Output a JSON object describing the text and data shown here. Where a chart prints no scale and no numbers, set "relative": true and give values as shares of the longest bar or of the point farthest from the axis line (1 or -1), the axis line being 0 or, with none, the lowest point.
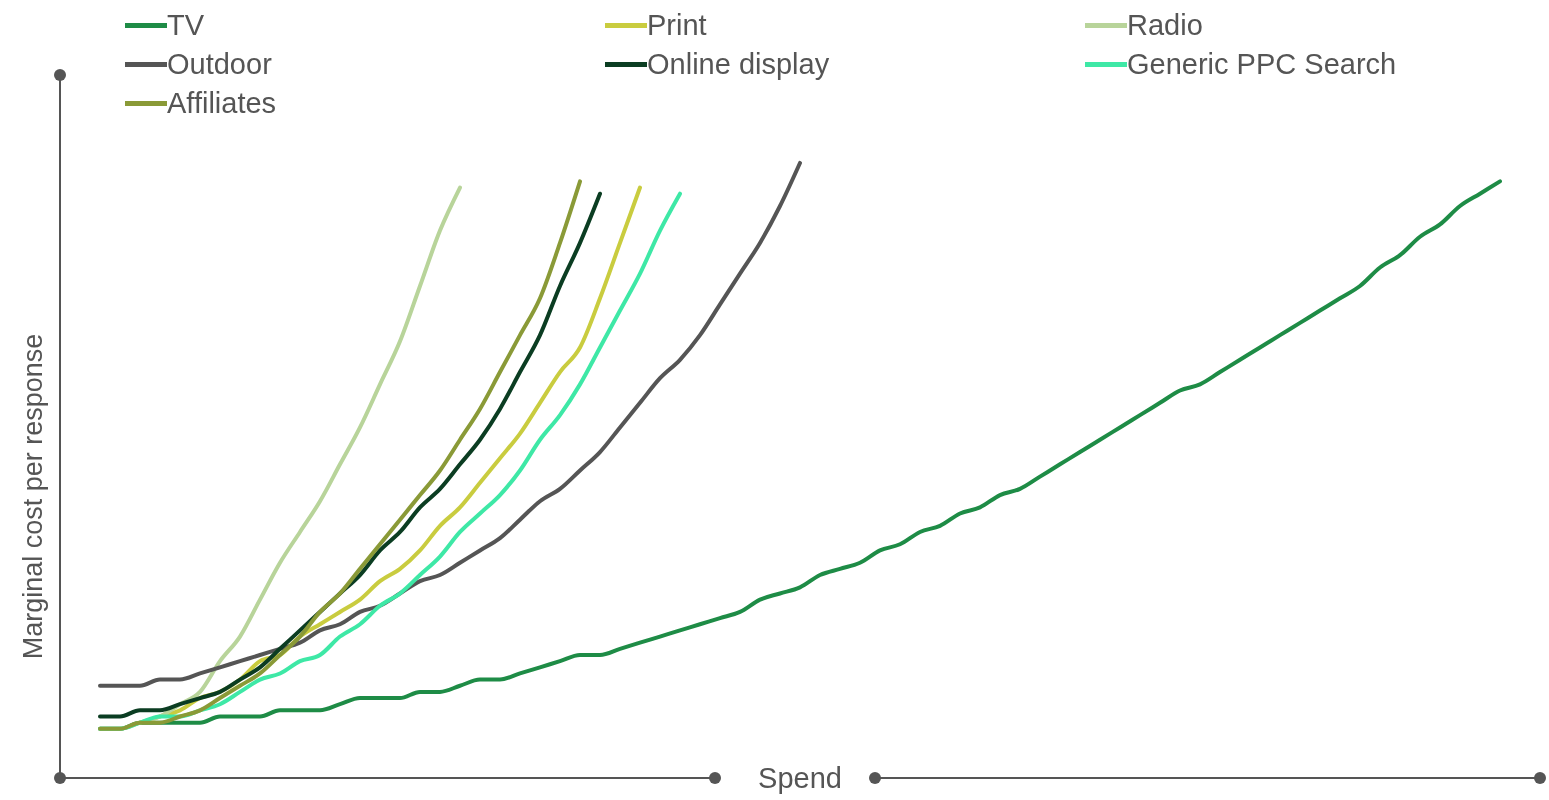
{
  "chart_data": {
    "type": "line",
    "relative": true,
    "xlabel": "Spend",
    "ylabel": "Marginal cost per response",
    "legend": "top",
    "marker": "none",
    "line_style": "solid",
    "categories": [
      null,
      null,
      null,
      null,
      null,
      null,
      null,
      null,
      null,
      null,
      null,
      null,
      null,
      null,
      null,
      null,
      null,
      null,
      null,
      null,
      null,
      null,
      null,
      null,
      null,
      null,
      null,
      null,
      null,
      null,
      null,
      null,
      null,
      null,
      null,
      null,
      null,
      null,
      null,
      null,
      null,
      null,
      null,
      null,
      null,
      null,
      null,
      null,
      null,
      null,
      null,
      null,
      null,
      null,
      null,
      null,
      null,
      null,
      null,
      null,
      null,
      null,
      null,
      null,
      null,
      null,
      null,
      null,
      null,
      null,
      null
    ],
    "series": [
      {
        "name": "TV",
        "color": "#1e8c46",
        "values": [
          0.08,
          0.08,
          0.09,
          0.09,
          0.09,
          0.09,
          0.1,
          0.1,
          0.1,
          0.11,
          0.11,
          0.11,
          0.12,
          0.13,
          0.13,
          0.13,
          0.14,
          0.14,
          0.15,
          0.16,
          0.16,
          0.17,
          0.18,
          0.19,
          0.2,
          0.2,
          0.21,
          0.22,
          0.23,
          0.24,
          0.25,
          0.26,
          0.27,
          0.29,
          0.3,
          0.31,
          0.33,
          0.34,
          0.35,
          0.37,
          0.38,
          0.4,
          0.41,
          0.43,
          0.44,
          0.46,
          0.47,
          0.49,
          0.51,
          0.53,
          0.55,
          0.57,
          0.59,
          0.61,
          0.63,
          0.64,
          0.66,
          0.68,
          0.7,
          0.72,
          0.74,
          0.76,
          0.78,
          0.8,
          0.83,
          0.85,
          0.88,
          0.9,
          0.93,
          0.95,
          0.97
        ]
      },
      {
        "name": "Print",
        "color": "#c9cc3f",
        "values": [
          null,
          null,
          0.09,
          0.1,
          0.11,
          0.13,
          0.14,
          0.16,
          0.19,
          0.2,
          0.23,
          0.25,
          0.27,
          0.29,
          0.32,
          0.34,
          0.37,
          0.41,
          0.44,
          0.48,
          0.52,
          0.56,
          0.61,
          0.66,
          0.7,
          0.78,
          0.87,
          0.96,
          null,
          null,
          null,
          null,
          null,
          null,
          null,
          null,
          null,
          null,
          null,
          null,
          null,
          null,
          null,
          null,
          null,
          null,
          null,
          null,
          null,
          null,
          null,
          null,
          null,
          null,
          null,
          null,
          null,
          null,
          null,
          null,
          null,
          null,
          null,
          null,
          null,
          null,
          null,
          null,
          null,
          null,
          null
        ]
      },
      {
        "name": "Radio",
        "color": "#b8d49a",
        "values": [
          0.08,
          0.08,
          0.09,
          0.1,
          0.12,
          0.14,
          0.19,
          0.23,
          0.29,
          0.35,
          0.4,
          0.45,
          0.51,
          0.57,
          0.64,
          0.71,
          0.8,
          0.89,
          0.96,
          null,
          null,
          null,
          null,
          null,
          null,
          null,
          null,
          null,
          null,
          null,
          null,
          null,
          null,
          null,
          null,
          null,
          null,
          null,
          null,
          null,
          null,
          null,
          null,
          null,
          null,
          null,
          null,
          null,
          null,
          null,
          null,
          null,
          null,
          null,
          null,
          null,
          null,
          null,
          null,
          null,
          null,
          null,
          null,
          null,
          null,
          null,
          null,
          null,
          null,
          null,
          null
        ]
      },
      {
        "name": "Outdoor",
        "color": "#555555",
        "values": [
          0.15,
          0.15,
          0.15,
          0.16,
          0.16,
          0.17,
          0.18,
          0.19,
          0.2,
          0.21,
          0.22,
          0.24,
          0.25,
          0.27,
          0.28,
          0.3,
          0.32,
          0.33,
          0.35,
          0.37,
          0.39,
          0.42,
          0.45,
          0.47,
          0.5,
          0.53,
          0.57,
          0.61,
          0.65,
          0.68,
          0.72,
          0.77,
          0.82,
          0.87,
          0.93,
          1,
          null,
          null,
          null,
          null,
          null,
          null,
          null,
          null,
          null,
          null,
          null,
          null,
          null,
          null,
          null,
          null,
          null,
          null,
          null,
          null,
          null,
          null,
          null,
          null,
          null,
          null,
          null,
          null,
          null,
          null,
          null,
          null,
          null,
          null,
          null
        ]
      },
      {
        "name": "Online display",
        "color": "#0b3d22",
        "values": [
          0.1,
          0.1,
          0.11,
          0.11,
          0.12,
          0.13,
          0.14,
          0.16,
          0.18,
          0.21,
          0.24,
          0.27,
          0.3,
          0.33,
          0.37,
          0.4,
          0.44,
          0.47,
          0.51,
          0.55,
          0.6,
          0.66,
          0.72,
          0.8,
          0.87,
          0.95,
          null,
          null,
          null,
          null,
          null,
          null,
          null,
          null,
          null,
          null,
          null,
          null,
          null,
          null,
          null,
          null,
          null,
          null,
          null,
          null,
          null,
          null,
          null,
          null,
          null,
          null,
          null,
          null,
          null,
          null,
          null,
          null,
          null,
          null,
          null,
          null,
          null,
          null,
          null,
          null,
          null,
          null,
          null,
          null,
          null
        ]
      },
      {
        "name": "Generic PPC Search",
        "color": "#3ee8a6",
        "values": [
          0.08,
          0.08,
          0.09,
          0.1,
          0.1,
          0.11,
          0.12,
          0.14,
          0.16,
          0.17,
          0.19,
          0.2,
          0.23,
          0.25,
          0.28,
          0.3,
          0.33,
          0.36,
          0.4,
          0.43,
          0.46,
          0.5,
          0.55,
          0.59,
          0.64,
          0.7,
          0.76,
          0.82,
          0.89,
          0.95,
          null,
          null,
          null,
          null,
          null,
          null,
          null,
          null,
          null,
          null,
          null,
          null,
          null,
          null,
          null,
          null,
          null,
          null,
          null,
          null,
          null,
          null,
          null,
          null,
          null,
          null,
          null,
          null,
          null,
          null,
          null,
          null,
          null,
          null,
          null,
          null,
          null,
          null,
          null,
          null,
          null
        ]
      },
      {
        "name": "Affiliates",
        "color": "#8a9a37",
        "values": [
          0.08,
          0.08,
          0.09,
          0.09,
          0.1,
          0.11,
          0.13,
          0.15,
          0.17,
          0.2,
          0.23,
          0.27,
          0.3,
          0.34,
          0.38,
          0.42,
          0.46,
          0.5,
          0.55,
          0.6,
          0.66,
          0.72,
          0.78,
          0.87,
          0.97,
          null,
          null,
          null,
          null,
          null,
          null,
          null,
          null,
          null,
          null,
          null,
          null,
          null,
          null,
          null,
          null,
          null,
          null,
          null,
          null,
          null,
          null,
          null,
          null,
          null,
          null,
          null,
          null,
          null,
          null,
          null,
          null,
          null,
          null,
          null,
          null,
          null,
          null,
          null,
          null,
          null,
          null,
          null,
          null,
          null,
          null
        ]
      }
    ]
  }
}
